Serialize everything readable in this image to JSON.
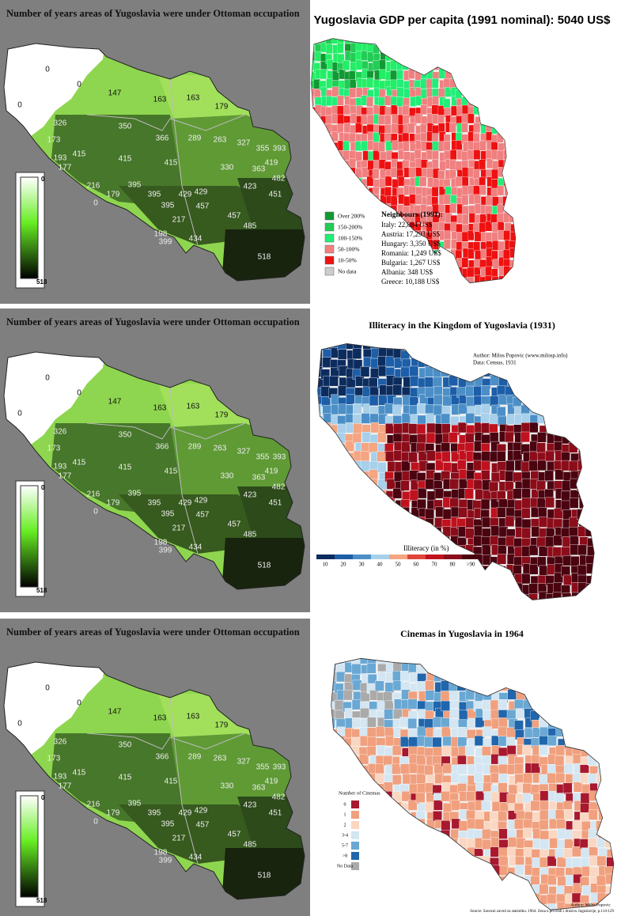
{
  "ottoman_panel": {
    "title": "Number of years areas of Yugoslavia were under Ottoman occupation",
    "region_labels": [
      0,
      0,
      0,
      147,
      163,
      163,
      179,
      326,
      350,
      173,
      366,
      289,
      263,
      327,
      355,
      393,
      415,
      193,
      415,
      415,
      419,
      177,
      330,
      363,
      482,
      216,
      395,
      423,
      179,
      395,
      429,
      429,
      451,
      0,
      395,
      457,
      217,
      457,
      198,
      485,
      399,
      434,
      518
    ],
    "legend": {
      "min": "0",
      "max": "518"
    }
  },
  "gdp_panel": {
    "title": "Yugoslavia GDP per capita (1991 nominal): 5040 US$",
    "legend": [
      "Over 200%",
      "150-200%",
      "100-150%",
      "50-100%",
      "10-50%",
      "No data"
    ],
    "neighbours_title": "Neighbours (1991):",
    "neighbours": [
      "Italy: 22,884 US$",
      "Austria: 17,293 US$",
      "Hungary: 3,350 US$",
      "Romania: 1,249 US$",
      "Bulgaria: 1,267 US$",
      "Albania: 348 US$",
      "Greece: 10,188 US$"
    ]
  },
  "illiteracy_panel": {
    "title": "Illiteracy in the Kingdom of Yugoslavia (1931)",
    "author": "Author: Milos Popovic (www.milosp.info)",
    "data_source": "Data: Census, 1931",
    "legend_title": "Illiteracy (in %)",
    "legend": [
      "10",
      "20",
      "30",
      "40",
      "50",
      "60",
      "70",
      "80",
      ">90"
    ]
  },
  "cinemas_panel": {
    "title": "Cinemas in Yugoslavia in 1964",
    "legend_title": "Number of Cinemas",
    "legend": [
      "0",
      "1",
      "2",
      "3-4",
      "5-7",
      ">8",
      "No Data"
    ],
    "author": "Author: Milos Popovic",
    "source": "Source: Savezni zavod za statistiku. 1964. Zena u privredi i drustvu Jugoslavije, p.114-129"
  }
}
